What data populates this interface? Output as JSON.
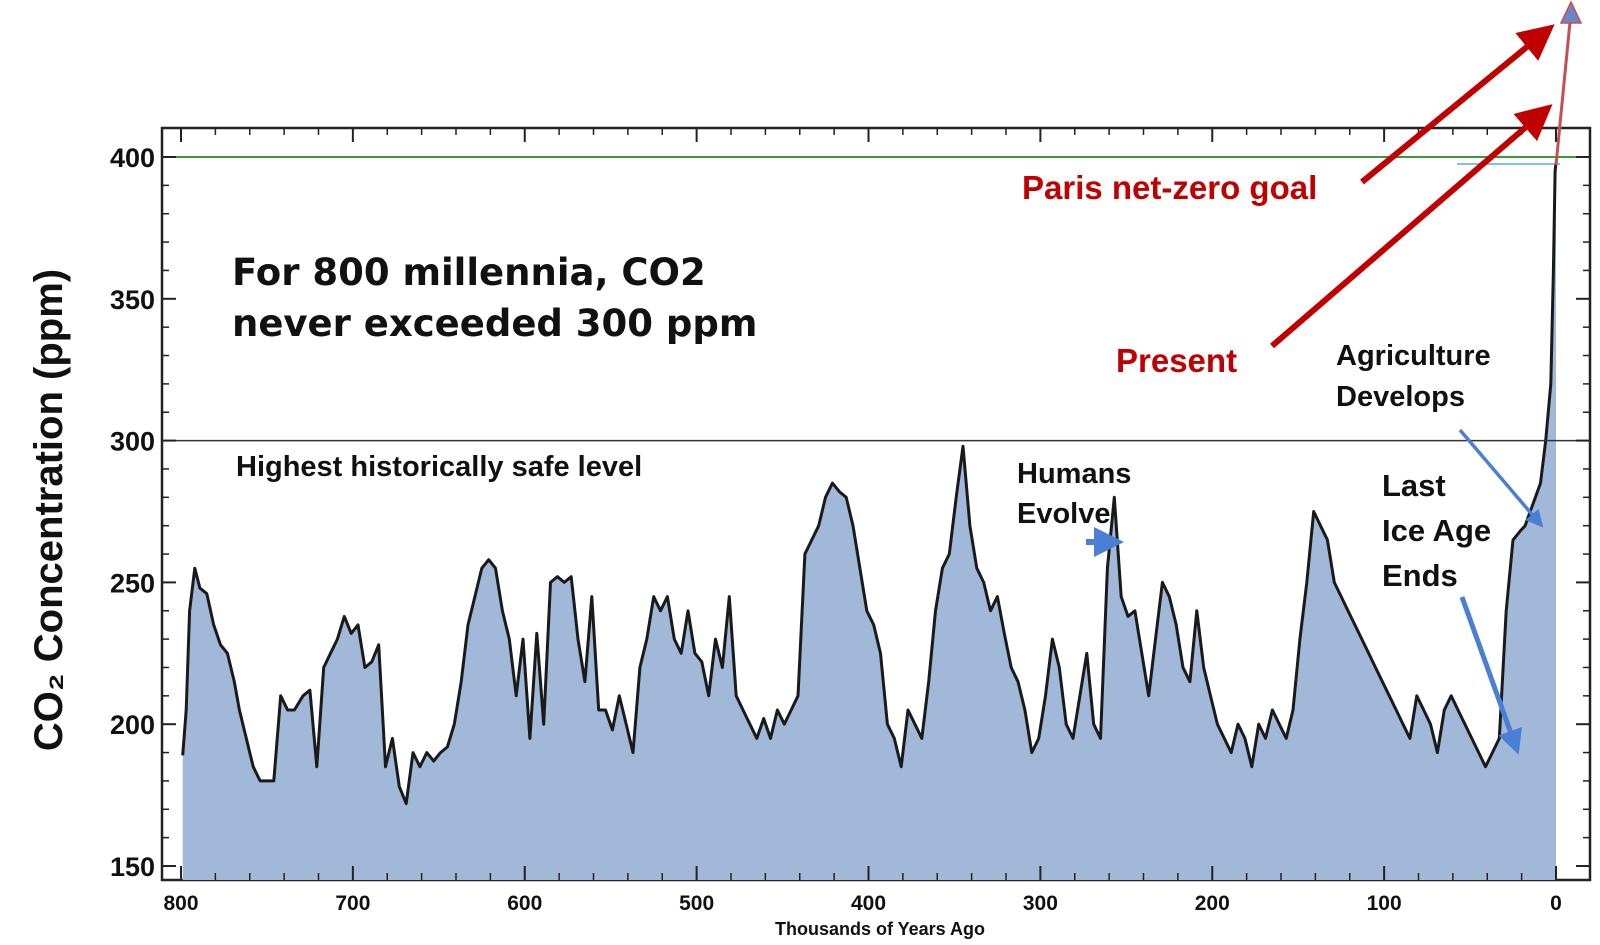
{
  "chart_data": {
    "type": "area",
    "title": "",
    "xlabel": "Thousands of Years Ago",
    "ylabel": "CO₂ Concentration (ppm)",
    "xlim": [
      800,
      0
    ],
    "ylim": [
      150,
      410
    ],
    "x_ticks": [
      800,
      700,
      600,
      500,
      400,
      300,
      200,
      100,
      0
    ],
    "y_ticks": [
      150,
      200,
      250,
      300,
      350,
      400
    ],
    "grid": false,
    "colors": {
      "fill": "#a2b8d8",
      "line": "#1a1a1a",
      "safe_line": "#333333",
      "goal_line": "#3c9a3c",
      "red": "#c00000",
      "blue": "#4a7fd4"
    },
    "series": [
      {
        "x": [
          799,
          797,
          795,
          792,
          789,
          785,
          781,
          777,
          773,
          769,
          766,
          762,
          758,
          754,
          750,
          746,
          742,
          738,
          734,
          729,
          725,
          721,
          717,
          713,
          709,
          705,
          701,
          697,
          693,
          689,
          685,
          681,
          677,
          673,
          669,
          665,
          661,
          657,
          653,
          649,
          645,
          641,
          637,
          633,
          629,
          625,
          621,
          617,
          613,
          609,
          605,
          601,
          597,
          593,
          589,
          585,
          581,
          577,
          573,
          569,
          565,
          561,
          557,
          553,
          549,
          545,
          541,
          537,
          533,
          529,
          525,
          521,
          517,
          513,
          509,
          505,
          501,
          497,
          493,
          489,
          485,
          481,
          477,
          473,
          469,
          465,
          461,
          457,
          453,
          449,
          445,
          441,
          437,
          433,
          429,
          425,
          421,
          417,
          413,
          409,
          405,
          401,
          397,
          393,
          389,
          385,
          381,
          377,
          373,
          369,
          365,
          361,
          357,
          353,
          349,
          345,
          341,
          337,
          333,
          329,
          325,
          321,
          317,
          313,
          309,
          305,
          301,
          297,
          293,
          289,
          285,
          281,
          277,
          273,
          269,
          265,
          261,
          257,
          253,
          249,
          245,
          241,
          237,
          233,
          229,
          225,
          221,
          217,
          213,
          209,
          205,
          201,
          197,
          193,
          189,
          185,
          181,
          177,
          173,
          169,
          165,
          161,
          157,
          153,
          149,
          145,
          141,
          137,
          133,
          129,
          125,
          121,
          117,
          113,
          109,
          105,
          101,
          97,
          93,
          89,
          85,
          81,
          77,
          73,
          69,
          65,
          61,
          57,
          53,
          49,
          45,
          41,
          37,
          33,
          29,
          25,
          21,
          18,
          15,
          12,
          9,
          6,
          3,
          1.5,
          0.5,
          0
        ],
        "y": [
          189,
          205,
          240,
          255,
          248,
          246,
          235,
          228,
          225,
          215,
          205,
          195,
          185,
          180,
          180,
          180,
          210,
          205,
          205,
          210,
          212,
          185,
          220,
          225,
          230,
          238,
          232,
          235,
          220,
          222,
          228,
          185,
          195,
          178,
          172,
          190,
          185,
          190,
          187,
          190,
          192,
          200,
          215,
          235,
          245,
          255,
          258,
          255,
          240,
          230,
          210,
          230,
          195,
          232,
          200,
          250,
          252,
          250,
          252,
          230,
          215,
          245,
          205,
          205,
          198,
          210,
          200,
          190,
          220,
          230,
          245,
          240,
          245,
          230,
          225,
          240,
          225,
          222,
          210,
          230,
          220,
          245,
          210,
          205,
          200,
          195,
          202,
          195,
          205,
          200,
          205,
          210,
          260,
          265,
          270,
          280,
          285,
          282,
          280,
          270,
          255,
          240,
          235,
          225,
          200,
          195,
          185,
          205,
          200,
          195,
          215,
          240,
          255,
          260,
          280,
          298,
          270,
          255,
          250,
          240,
          245,
          232,
          220,
          215,
          205,
          190,
          195,
          210,
          230,
          220,
          200,
          195,
          210,
          225,
          200,
          195,
          255,
          280,
          245,
          238,
          240,
          225,
          210,
          230,
          250,
          245,
          235,
          220,
          215,
          240,
          220,
          210,
          200,
          195,
          190,
          200,
          195,
          185,
          200,
          195,
          205,
          200,
          195,
          205,
          230,
          250,
          275,
          270,
          265,
          250,
          245,
          240,
          235,
          230,
          225,
          220,
          215,
          210,
          205,
          200,
          195,
          210,
          205,
          200,
          190,
          205,
          210,
          205,
          200,
          195,
          190,
          185,
          190,
          195,
          240,
          265,
          268,
          270,
          275,
          280,
          285,
          300,
          320,
          360,
          395,
          398
        ]
      }
    ]
  },
  "labels": {
    "big_note_line1": "For 800 millennia, CO2",
    "big_note_line2": "never exceeded 300 ppm",
    "safe_level": "Highest historically safe level",
    "humans_line1": "Humans",
    "humans_line2": "Evolve",
    "agriculture_line1": "Agriculture",
    "agriculture_line2": "Develops",
    "ice_line1": "Last",
    "ice_line2": "Ice Age",
    "ice_line3": "Ends",
    "paris": "Paris net-zero goal",
    "present": "Present"
  },
  "reference_lines": {
    "safe_level_ppm": 300,
    "goal_ppm": 400
  }
}
